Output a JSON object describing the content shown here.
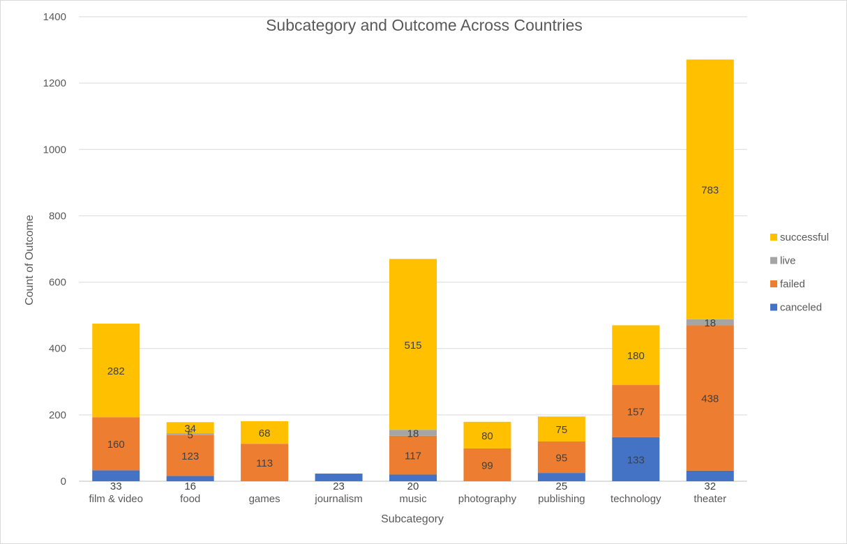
{
  "chart_data": {
    "type": "bar",
    "stacked": true,
    "title": "Subcategory and Outcome Across Countries",
    "xlabel": "Subcategory",
    "ylabel": "Count of Outcome",
    "ylim": [
      0,
      1400
    ],
    "yticks": [
      0,
      200,
      400,
      600,
      800,
      1000,
      1200,
      1400
    ],
    "grid": true,
    "legend_position": "right",
    "categories": [
      "film & video",
      "food",
      "games",
      "journalism",
      "music",
      "photography",
      "publishing",
      "technology",
      "theater"
    ],
    "series": [
      {
        "name": "canceled",
        "color": "#4472C4",
        "values": [
          33,
          16,
          0,
          23,
          20,
          0,
          25,
          133,
          32
        ]
      },
      {
        "name": "failed",
        "color": "#ED7D31",
        "values": [
          160,
          123,
          113,
          0,
          117,
          99,
          95,
          157,
          438
        ]
      },
      {
        "name": "live",
        "color": "#A5A5A5",
        "values": [
          0,
          5,
          0,
          0,
          18,
          0,
          0,
          0,
          18
        ]
      },
      {
        "name": "successful",
        "color": "#FFC000",
        "values": [
          282,
          34,
          68,
          0,
          515,
          80,
          75,
          180,
          783
        ]
      }
    ]
  }
}
